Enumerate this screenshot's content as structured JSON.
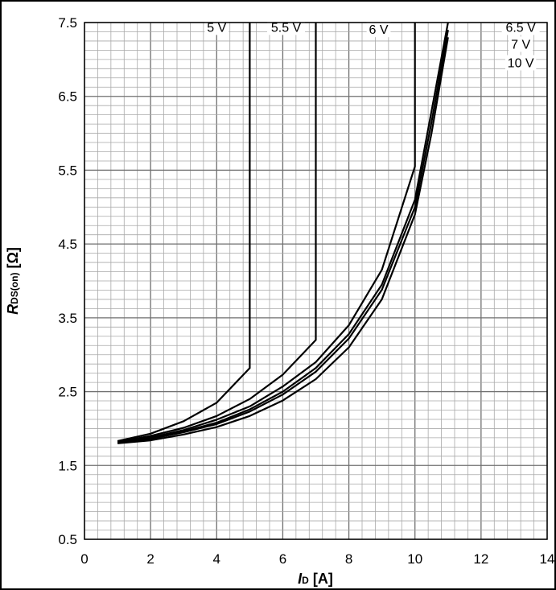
{
  "chart_data": {
    "type": "line",
    "xlabel": {
      "main": "I",
      "sub": "D",
      "unit": " [A]"
    },
    "ylabel": {
      "main": "R",
      "sub": "DS(on)",
      "unit": " [Ω]"
    },
    "xlim": [
      0,
      14
    ],
    "ylim": [
      0.5,
      7.5
    ],
    "x_ticks": [
      "0",
      "2",
      "4",
      "6",
      "8",
      "10",
      "12",
      "14"
    ],
    "y_ticks": [
      "0.5",
      "1.5",
      "2.5",
      "3.5",
      "4.5",
      "5.5",
      "6.5",
      "7.5"
    ],
    "grid": true,
    "series": [
      {
        "name": "5 V",
        "points": [
          [
            1,
            1.83
          ],
          [
            2,
            1.93
          ],
          [
            3,
            2.1
          ],
          [
            4,
            2.35
          ],
          [
            5,
            2.82
          ],
          [
            5,
            7.5
          ]
        ]
      },
      {
        "name": "5.5 V",
        "points": [
          [
            1,
            1.82
          ],
          [
            2,
            1.9
          ],
          [
            3,
            2.01
          ],
          [
            4,
            2.17
          ],
          [
            5,
            2.4
          ],
          [
            6,
            2.73
          ],
          [
            7,
            3.2
          ],
          [
            7,
            7.5
          ]
        ]
      },
      {
        "name": "6 V",
        "points": [
          [
            1,
            1.82
          ],
          [
            2,
            1.88
          ],
          [
            3,
            1.98
          ],
          [
            4,
            2.12
          ],
          [
            5,
            2.3
          ],
          [
            6,
            2.57
          ],
          [
            7,
            2.9
          ],
          [
            8,
            3.4
          ],
          [
            9,
            4.15
          ],
          [
            10,
            5.55
          ],
          [
            10,
            7.5
          ]
        ]
      },
      {
        "name": "6.5 V",
        "points": [
          [
            1,
            1.81
          ],
          [
            2,
            1.87
          ],
          [
            3,
            1.96
          ],
          [
            4,
            2.08
          ],
          [
            5,
            2.26
          ],
          [
            6,
            2.5
          ],
          [
            7,
            2.82
          ],
          [
            8,
            3.28
          ],
          [
            9,
            3.95
          ],
          [
            10,
            5.1
          ],
          [
            10.5,
            6.3
          ],
          [
            11,
            7.5
          ]
        ]
      },
      {
        "name": "7 V",
        "points": [
          [
            1,
            1.81
          ],
          [
            2,
            1.86
          ],
          [
            3,
            1.95
          ],
          [
            4,
            2.06
          ],
          [
            5,
            2.23
          ],
          [
            6,
            2.46
          ],
          [
            7,
            2.77
          ],
          [
            8,
            3.22
          ],
          [
            9,
            3.88
          ],
          [
            10,
            5.0
          ],
          [
            10.5,
            6.15
          ],
          [
            11,
            7.4
          ]
        ]
      },
      {
        "name": "10 V",
        "points": [
          [
            1,
            1.8
          ],
          [
            2,
            1.84
          ],
          [
            3,
            1.92
          ],
          [
            4,
            2.02
          ],
          [
            5,
            2.17
          ],
          [
            6,
            2.38
          ],
          [
            7,
            2.67
          ],
          [
            8,
            3.1
          ],
          [
            9,
            3.75
          ],
          [
            10,
            4.9
          ],
          [
            10.5,
            6.0
          ],
          [
            11,
            7.3
          ]
        ]
      }
    ],
    "curve_labels": [
      {
        "text": "5 V",
        "x": 4.0,
        "y": 7.43
      },
      {
        "text": "5.5 V",
        "x": 6.1,
        "y": 7.43
      },
      {
        "text": "6 V",
        "x": 8.9,
        "y": 7.4
      },
      {
        "text": "6.5 V",
        "x": 13.2,
        "y": 7.43
      },
      {
        "text": "7 V",
        "x": 13.2,
        "y": 7.2
      },
      {
        "text": "10 V",
        "x": 13.2,
        "y": 6.95
      }
    ]
  }
}
